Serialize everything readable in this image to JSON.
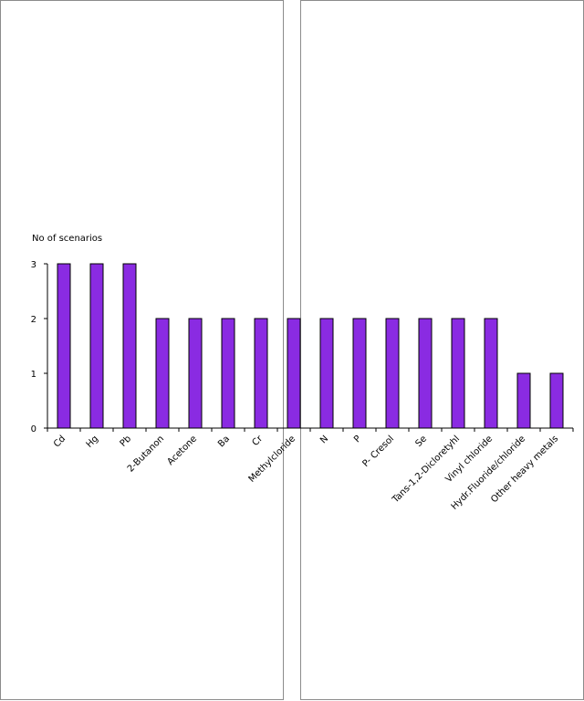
{
  "chart_data": {
    "type": "bar",
    "title": "",
    "xlabel": "",
    "ylabel": "No of scenarios",
    "ylim": [
      0,
      3
    ],
    "yticks": [
      0,
      1,
      2,
      3
    ],
    "grid": false,
    "bar_color": "#8a2be2",
    "bar_edge_color": "#000000",
    "categories": [
      "Cd",
      "Hg",
      "Pb",
      "2-Butanon",
      "Acetone",
      "Ba",
      "Cr",
      "Methylcloride",
      "N",
      "P",
      "P- Cresol",
      "Se",
      "Tans-1,2-Dicloretyhl",
      "Vinyl chloride",
      "Hydr.Fluoride/chloride",
      "Other heavy metals"
    ],
    "values": [
      3,
      3,
      3,
      2,
      2,
      2,
      2,
      2,
      2,
      2,
      2,
      2,
      2,
      2,
      1,
      1
    ]
  }
}
